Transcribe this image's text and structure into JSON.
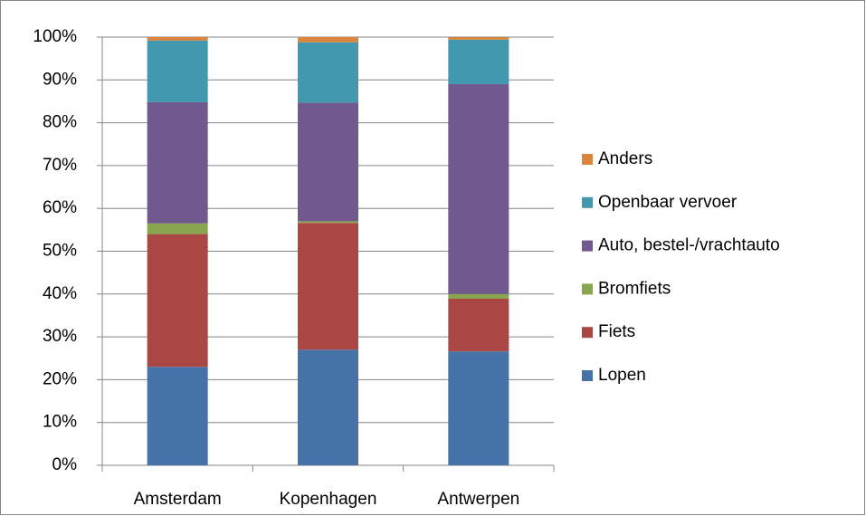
{
  "chart_data": {
    "type": "stacked-bar",
    "categories": [
      "Amsterdam",
      "Kopenhagen",
      "Antwerpen"
    ],
    "series": [
      {
        "name": "Lopen",
        "color": "#4572a7",
        "values": [
          23,
          27,
          26.6
        ]
      },
      {
        "name": "Fiets",
        "color": "#aa4643",
        "values": [
          31,
          29.6,
          12.3
        ]
      },
      {
        "name": "Bromfiets",
        "color": "#89a54e",
        "values": [
          2.5,
          0.4,
          1.1
        ]
      },
      {
        "name": "Auto, bestel-/vrachtauto",
        "color": "#71588f",
        "values": [
          28.3,
          27.7,
          49
        ]
      },
      {
        "name": "Openbaar vervoer",
        "color": "#4198af",
        "values": [
          14.4,
          14.1,
          10.4
        ]
      },
      {
        "name": "Anders",
        "color": "#db843d",
        "values": [
          0.8,
          1.2,
          0.6
        ]
      }
    ],
    "ylim": [
      0,
      100
    ],
    "yticks": [
      {
        "value": 0,
        "label": "0%"
      },
      {
        "value": 10,
        "label": "10%"
      },
      {
        "value": 20,
        "label": "20%"
      },
      {
        "value": 30,
        "label": "30%"
      },
      {
        "value": 40,
        "label": "40%"
      },
      {
        "value": 50,
        "label": "50%"
      },
      {
        "value": 60,
        "label": "60%"
      },
      {
        "value": 70,
        "label": "70%"
      },
      {
        "value": 80,
        "label": "80%"
      },
      {
        "value": 90,
        "label": "90%"
      },
      {
        "value": 100,
        "label": "100%"
      }
    ],
    "grid": true,
    "legend": "right"
  }
}
